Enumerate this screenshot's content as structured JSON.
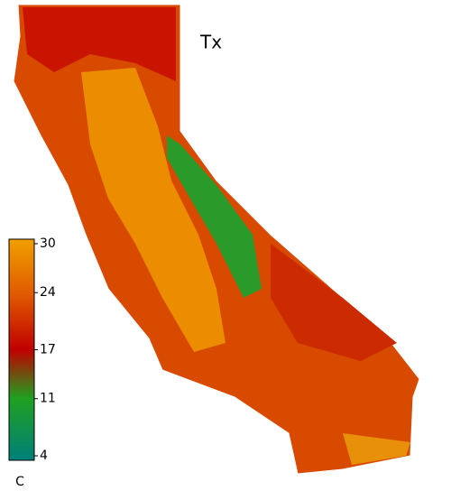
{
  "map": {
    "title": "Tx",
    "colorbar": {
      "lim": [
        4,
        30
      ],
      "ticks": [
        30,
        24,
        17,
        11,
        4
      ],
      "unit": "C"
    }
  }
}
